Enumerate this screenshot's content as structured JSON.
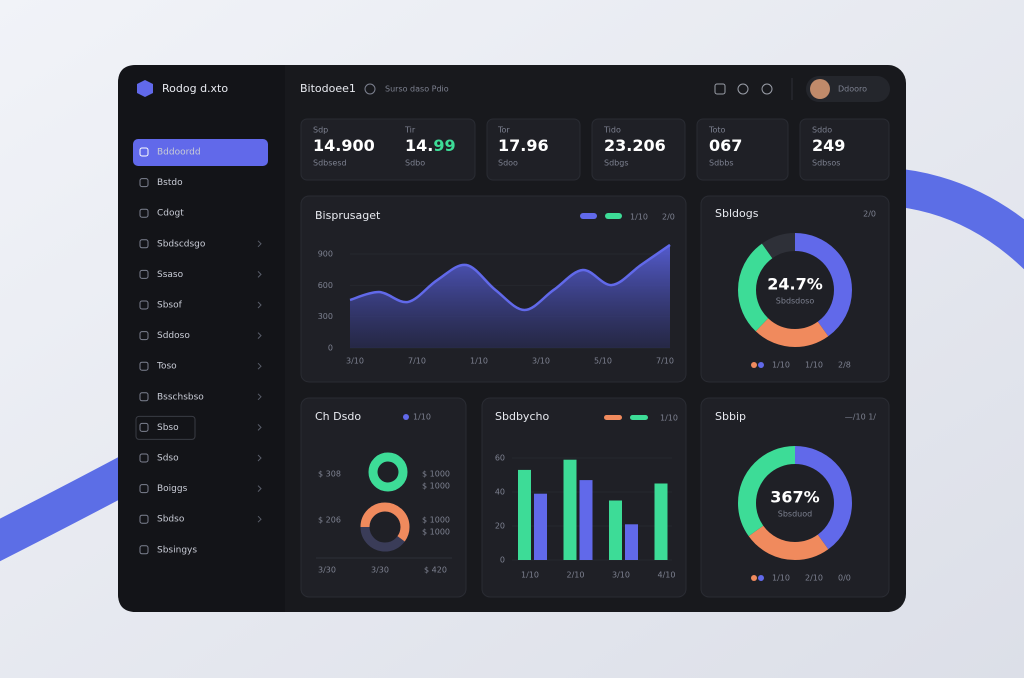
{
  "brand": "Rodog d.xto",
  "header": {
    "title": "Bitodoee1",
    "breadcrumb": "Surso daso Pdio",
    "user": "Ddooro"
  },
  "sidebar": {
    "active": 0,
    "items": [
      "Bddoordd",
      "Bstdo",
      "Cdogt",
      "Sbdscdsgo",
      "Ssaso",
      "Sbsof",
      "Sddoso",
      "Toso",
      "Bsschsbso",
      "Sbso",
      "Sdso",
      "Boiggs",
      "Sbdso",
      "Sbsingys"
    ]
  },
  "kpis": [
    {
      "label": "Sdp",
      "value": "14.900",
      "sub": "Sdbsesd"
    },
    {
      "label": "Tir",
      "value": "14.",
      "accent": "99",
      "sub": "Sdbo"
    },
    {
      "label": "Tor",
      "value": "17.96",
      "sub": "Sdoo"
    },
    {
      "label": "Tido",
      "value": "23.206",
      "sub": "Sdbgs"
    },
    {
      "label": "Toto",
      "value": "067",
      "sub": "Sdbbs"
    },
    {
      "label": "Sddo",
      "value": "249",
      "sub": "Sdbsos"
    }
  ],
  "area": {
    "title": "Bisprusaget",
    "legend": {
      "colors": [
        "#6169ea",
        "#3ddc97"
      ],
      "labels": [
        "1/10",
        "2/0"
      ]
    },
    "xlabels": [
      "3/10",
      "7/10",
      "1/10",
      "3/10",
      "5/10",
      "7/10"
    ],
    "values": [
      460,
      536,
      441,
      651,
      795,
      556,
      364,
      556,
      747,
      603,
      795,
      987
    ],
    "ylim": [
      0,
      1000
    ],
    "yticks": [
      0,
      300,
      600,
      900
    ],
    "color": "#6169ea"
  },
  "donut1": {
    "title": "Sbldogs",
    "note": "2/0",
    "center": "24.7%",
    "sub": "Sbdsdoso",
    "values": [
      40,
      22,
      28,
      10
    ],
    "colors": [
      "#6169ea",
      "#f08a5d",
      "#3ddc97",
      "#2e3038"
    ],
    "legend": [
      "1/10",
      "1/10",
      "2/8"
    ]
  },
  "gauge": {
    "title": "Ch Dsdo",
    "legend": "1/10",
    "values": [
      100,
      60
    ],
    "colors": [
      "#3ddc97",
      "#f08a5d"
    ],
    "left": [
      "$ 308",
      "$ 206"
    ],
    "right": [
      "$ 1000",
      "$ 1000"
    ],
    "right_sub": [
      "$ 1000",
      "$ 1000"
    ],
    "bottom": [
      "3/30",
      "3/30",
      "$ 420"
    ]
  },
  "bars": {
    "title": "Sbdbycho",
    "legend": "1/10",
    "legend_colors": [
      "#f08a5d",
      "#3ddc97"
    ],
    "categories": [
      "1/10",
      "2/10",
      "3/10",
      "4/10"
    ],
    "series": [
      {
        "color": "#3ddc97",
        "values": [
          53,
          59,
          35,
          45
        ]
      },
      {
        "color": "#6169ea",
        "values": [
          39,
          47,
          21,
          null
        ]
      }
    ],
    "ylim": [
      0,
      60
    ],
    "yticks": [
      0,
      20,
      40,
      60
    ]
  },
  "donut2": {
    "title": "Sbbip",
    "note": "—/10 1/",
    "center": "367%",
    "sub": "Sbsduod",
    "values": [
      40,
      25,
      35
    ],
    "colors": [
      "#6169ea",
      "#f08a5d",
      "#3ddc97"
    ],
    "legend": [
      "1/10",
      "2/10",
      "0/0"
    ]
  }
}
